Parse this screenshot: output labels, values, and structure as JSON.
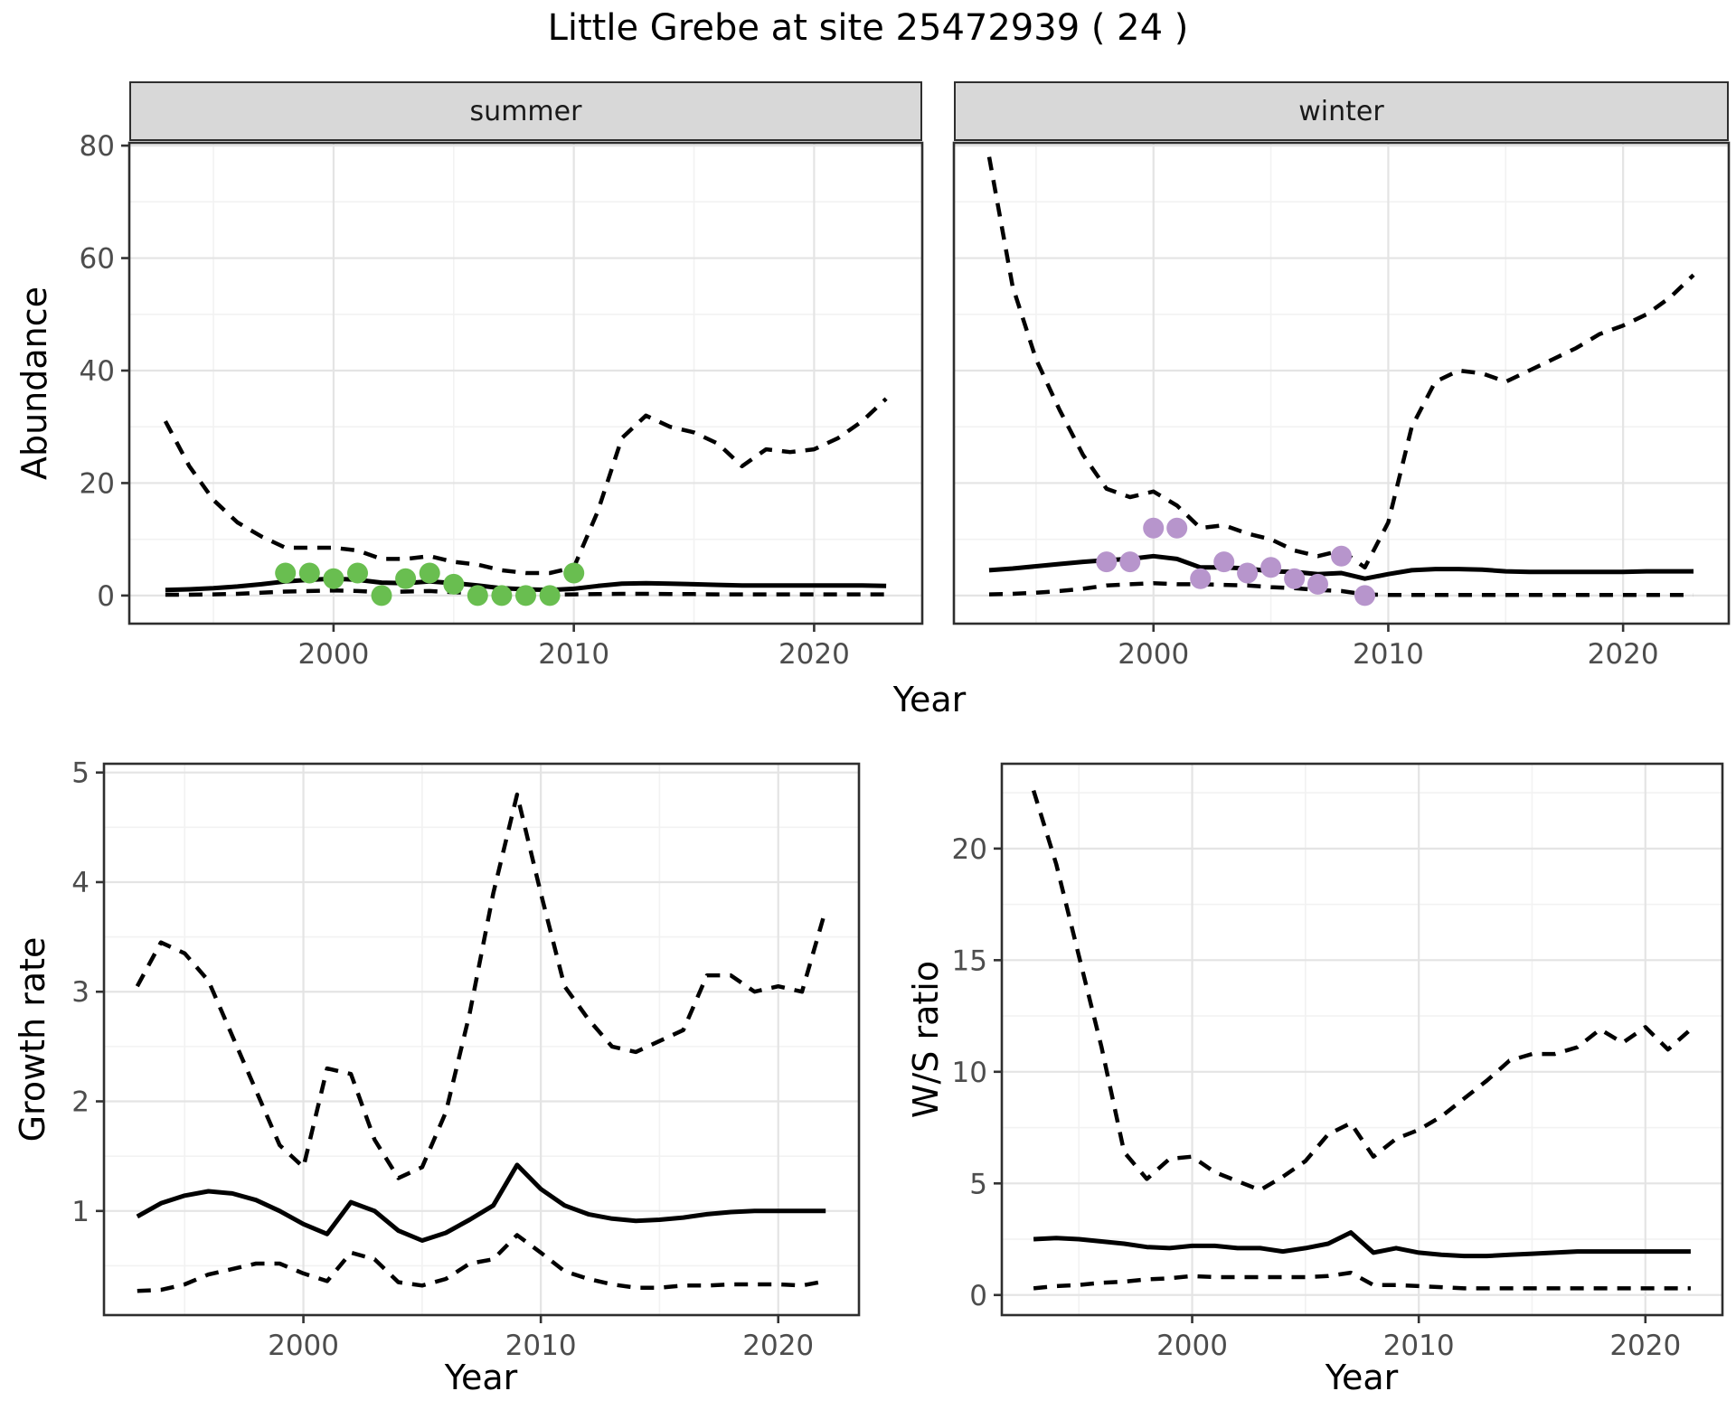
{
  "title": "Little Grebe at site 25472939 ( 24 )",
  "facets": {
    "summer": "summer",
    "winter": "winter"
  },
  "axis_titles": {
    "abundance": "Abundance",
    "year_top": "Year",
    "year_bottom_left": "Year",
    "year_bottom_right": "Year",
    "growth_rate": "Growth rate",
    "ws_ratio": "W/S ratio"
  },
  "colors": {
    "summer_points": "#69be50",
    "winter_points": "#b795cc",
    "line": "#000000",
    "grid_major": "#e4e4e4",
    "grid_minor": "#f2f2f2",
    "panel_border": "#2e2e2e",
    "tick_label": "#4d4d4d",
    "strip_fill": "#d8d8d8"
  },
  "chart_data": [
    {
      "id": "abundance-summer",
      "type": "line",
      "facet_label": "summer",
      "ylabel": "Abundance",
      "xlabel": "Year",
      "x": [
        1993,
        1994,
        1995,
        1996,
        1997,
        1998,
        1999,
        2000,
        2001,
        2002,
        2003,
        2004,
        2005,
        2006,
        2007,
        2008,
        2009,
        2010,
        2011,
        2012,
        2013,
        2014,
        2015,
        2016,
        2017,
        2018,
        2019,
        2020,
        2021,
        2022,
        2023
      ],
      "series": [
        {
          "name": "upper_95ci",
          "style": "dashed",
          "values": [
            31,
            23,
            17,
            13,
            10.5,
            8.5,
            8.5,
            8.5,
            8,
            6.5,
            6.5,
            7,
            6,
            5.5,
            4.5,
            4,
            4,
            5,
            15,
            28,
            32,
            30,
            29,
            27,
            23,
            26,
            25.5,
            26,
            28,
            31,
            35
          ]
        },
        {
          "name": "fitted",
          "style": "solid",
          "values": [
            1,
            1.1,
            1.3,
            1.6,
            2,
            2.5,
            2.8,
            3,
            2.8,
            2.3,
            2.2,
            2.5,
            2.2,
            1.8,
            1.3,
            1.1,
            1,
            1.2,
            1.7,
            2.1,
            2.2,
            2.1,
            2,
            1.9,
            1.8,
            1.8,
            1.8,
            1.8,
            1.8,
            1.8,
            1.7
          ]
        },
        {
          "name": "lower_95ci",
          "style": "dashed",
          "values": [
            0.15,
            0.15,
            0.2,
            0.3,
            0.5,
            0.7,
            0.8,
            0.9,
            0.8,
            0.6,
            0.7,
            0.8,
            0.6,
            0.4,
            0.25,
            0.15,
            0.15,
            0.2,
            0.25,
            0.3,
            0.3,
            0.25,
            0.25,
            0.2,
            0.2,
            0.2,
            0.2,
            0.2,
            0.2,
            0.2,
            0.2
          ]
        }
      ],
      "points": {
        "name": "observed_counts",
        "color_key": "summer_points",
        "x": [
          1998,
          1999,
          2000,
          2001,
          2002,
          2003,
          2004,
          2005,
          2006,
          2007,
          2008,
          2009,
          2010
        ],
        "y": [
          4,
          4,
          3,
          4,
          0,
          3,
          4,
          2,
          0,
          0,
          0,
          0,
          4
        ]
      },
      "xlim": [
        1991.5,
        2024.5
      ],
      "ylim": [
        -5,
        80.5
      ],
      "xticks": [
        2000,
        2010,
        2020
      ],
      "xticks_minor": [
        1995,
        2005,
        2015
      ],
      "yticks": [
        0,
        20,
        40,
        60,
        80
      ],
      "yticks_minor": [
        10,
        30,
        50,
        70
      ]
    },
    {
      "id": "abundance-winter",
      "type": "line",
      "facet_label": "winter",
      "ylabel": "Abundance",
      "xlabel": "Year",
      "x": [
        1993,
        1994,
        1995,
        1996,
        1997,
        1998,
        1999,
        2000,
        2001,
        2002,
        2003,
        2004,
        2005,
        2006,
        2007,
        2008,
        2009,
        2010,
        2011,
        2012,
        2013,
        2014,
        2015,
        2016,
        2017,
        2018,
        2019,
        2020,
        2021,
        2022,
        2023
      ],
      "series": [
        {
          "name": "upper_95ci",
          "style": "dashed",
          "values": [
            78,
            55,
            42,
            33,
            25,
            19,
            17.5,
            18.5,
            16,
            12,
            12.5,
            11,
            10,
            8,
            7,
            8,
            5,
            13,
            30,
            38,
            40,
            39.5,
            38,
            40,
            42,
            44,
            46.5,
            48,
            50,
            53,
            57
          ]
        },
        {
          "name": "fitted",
          "style": "solid",
          "values": [
            4.5,
            4.8,
            5.2,
            5.6,
            6,
            6.3,
            6.5,
            7,
            6.5,
            5,
            5,
            4.8,
            4.3,
            4.2,
            3.8,
            4,
            3,
            3.8,
            4.5,
            4.7,
            4.7,
            4.6,
            4.3,
            4.2,
            4.2,
            4.2,
            4.2,
            4.2,
            4.3,
            4.3,
            4.3
          ]
        },
        {
          "name": "lower_95ci",
          "style": "dashed",
          "values": [
            0.2,
            0.3,
            0.5,
            0.8,
            1.2,
            1.8,
            2,
            2.2,
            2,
            2,
            1.9,
            1.8,
            1.5,
            1.3,
            1,
            0.8,
            0.2,
            0.1,
            0.1,
            0.1,
            0.1,
            0.1,
            0.1,
            0.1,
            0.1,
            0.1,
            0.1,
            0.1,
            0.1,
            0.1,
            0.1
          ]
        }
      ],
      "points": {
        "name": "observed_counts",
        "color_key": "winter_points",
        "x": [
          1998,
          1999,
          2000,
          2001,
          2002,
          2003,
          2004,
          2005,
          2006,
          2007,
          2008,
          2009
        ],
        "y": [
          6,
          6,
          12,
          12,
          3,
          6,
          4,
          5,
          3,
          2,
          7,
          0
        ]
      },
      "xlim": [
        1991.5,
        2024.5
      ],
      "ylim": [
        -5,
        80.5
      ],
      "xticks": [
        2000,
        2010,
        2020
      ],
      "xticks_minor": [
        1995,
        2005,
        2015
      ],
      "yticks": [
        0,
        20,
        40,
        60,
        80
      ],
      "yticks_minor": [
        10,
        30,
        50,
        70
      ]
    },
    {
      "id": "growth-rate",
      "type": "line",
      "ylabel": "Growth rate",
      "xlabel": "Year",
      "x": [
        1993,
        1994,
        1995,
        1996,
        1997,
        1998,
        1999,
        2000,
        2001,
        2002,
        2003,
        2004,
        2005,
        2006,
        2007,
        2008,
        2009,
        2010,
        2011,
        2012,
        2013,
        2014,
        2015,
        2016,
        2017,
        2018,
        2019,
        2020,
        2021,
        2022
      ],
      "series": [
        {
          "name": "upper_95ci",
          "style": "dashed",
          "values": [
            3.05,
            3.45,
            3.35,
            3.1,
            2.6,
            2.1,
            1.6,
            1.4,
            2.3,
            2.25,
            1.65,
            1.3,
            1.4,
            1.9,
            2.8,
            3.9,
            4.8,
            3.9,
            3.05,
            2.75,
            2.5,
            2.45,
            2.55,
            2.65,
            3.15,
            3.15,
            3.0,
            3.05,
            3.0,
            3.75
          ]
        },
        {
          "name": "fitted",
          "style": "solid",
          "values": [
            0.95,
            1.07,
            1.14,
            1.18,
            1.16,
            1.1,
            1.0,
            0.88,
            0.79,
            1.08,
            1.0,
            0.82,
            0.73,
            0.8,
            0.92,
            1.05,
            1.42,
            1.2,
            1.05,
            0.97,
            0.93,
            0.91,
            0.92,
            0.94,
            0.97,
            0.99,
            1.0,
            1.0,
            1.0,
            1.0
          ]
        },
        {
          "name": "lower_95ci",
          "style": "dashed",
          "values": [
            0.27,
            0.28,
            0.33,
            0.42,
            0.47,
            0.52,
            0.52,
            0.43,
            0.36,
            0.62,
            0.56,
            0.35,
            0.32,
            0.38,
            0.52,
            0.56,
            0.78,
            0.62,
            0.45,
            0.38,
            0.33,
            0.3,
            0.3,
            0.32,
            0.32,
            0.33,
            0.33,
            0.33,
            0.32,
            0.36
          ]
        }
      ],
      "xlim": [
        1991.6,
        2023.4
      ],
      "ylim": [
        0.05,
        5.08
      ],
      "xticks": [
        2000,
        2010,
        2020
      ],
      "xticks_minor": [
        1995,
        2005,
        2015
      ],
      "yticks": [
        1,
        2,
        3,
        4,
        5
      ],
      "yticks_minor": [
        0.5,
        1.5,
        2.5,
        3.5,
        4.5
      ]
    },
    {
      "id": "ws-ratio",
      "type": "line",
      "ylabel": "W/S ratio",
      "xlabel": "Year",
      "x": [
        1993,
        1994,
        1995,
        1996,
        1997,
        1998,
        1999,
        2000,
        2001,
        2002,
        2003,
        2004,
        2005,
        2006,
        2007,
        2008,
        2009,
        2010,
        2011,
        2012,
        2013,
        2014,
        2015,
        2016,
        2017,
        2018,
        2019,
        2020,
        2021,
        2022
      ],
      "series": [
        {
          "name": "upper_95ci",
          "style": "dashed",
          "values": [
            22.6,
            19.3,
            15.2,
            11.1,
            6.4,
            5.2,
            6.1,
            6.2,
            5.5,
            5.1,
            4.7,
            5.3,
            6.0,
            7.2,
            7.7,
            6.2,
            7.0,
            7.4,
            8.0,
            8.8,
            9.6,
            10.5,
            10.8,
            10.8,
            11.1,
            11.9,
            11.3,
            12.0,
            11.0,
            11.9
          ]
        },
        {
          "name": "fitted",
          "style": "solid",
          "values": [
            2.5,
            2.55,
            2.5,
            2.4,
            2.3,
            2.15,
            2.1,
            2.2,
            2.2,
            2.1,
            2.1,
            1.95,
            2.1,
            2.3,
            2.8,
            1.9,
            2.1,
            1.9,
            1.8,
            1.75,
            1.75,
            1.8,
            1.85,
            1.9,
            1.95,
            1.95,
            1.95,
            1.95,
            1.95,
            1.95
          ]
        },
        {
          "name": "lower_95ci",
          "style": "dashed",
          "values": [
            0.3,
            0.4,
            0.45,
            0.55,
            0.6,
            0.7,
            0.75,
            0.85,
            0.8,
            0.8,
            0.8,
            0.8,
            0.8,
            0.85,
            1.0,
            0.45,
            0.45,
            0.4,
            0.35,
            0.3,
            0.3,
            0.3,
            0.3,
            0.3,
            0.3,
            0.3,
            0.3,
            0.3,
            0.3,
            0.3
          ]
        }
      ],
      "xlim": [
        1991.6,
        2023.4
      ],
      "ylim": [
        -0.9,
        23.8
      ],
      "xticks": [
        2000,
        2010,
        2020
      ],
      "xticks_minor": [
        1995,
        2005,
        2015
      ],
      "yticks": [
        0,
        5,
        10,
        15,
        20
      ],
      "yticks_minor": [
        2.5,
        7.5,
        12.5,
        17.5,
        22.5
      ]
    }
  ]
}
